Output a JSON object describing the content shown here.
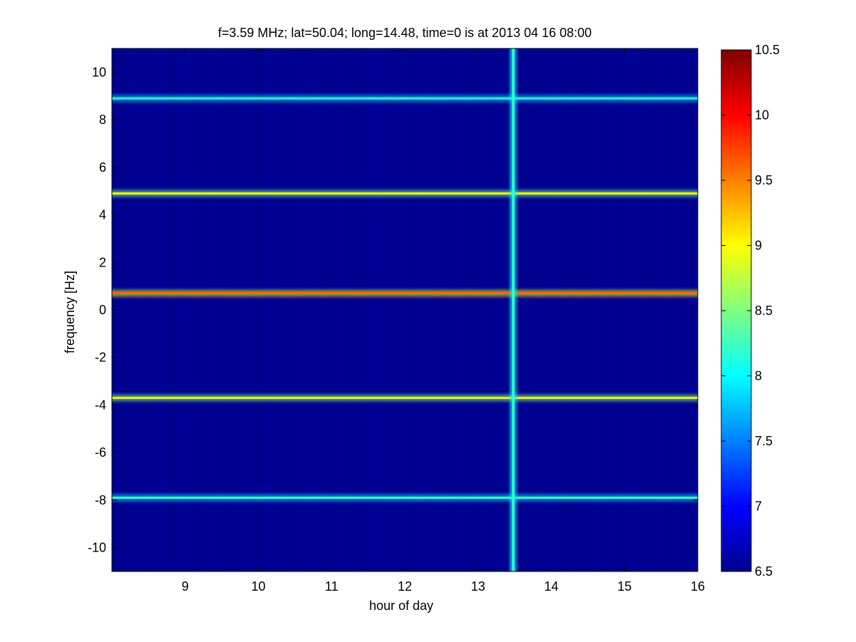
{
  "chart_data": {
    "type": "heatmap",
    "title": "f=3.59 MHz;  lat=50.04; long=14.48, time=0 is at 2013 04 16 08:00",
    "xlabel": "hour of day",
    "ylabel": "frequency [Hz]",
    "xlim": [
      8,
      16
    ],
    "ylim": [
      -11,
      11
    ],
    "x_ticks": [
      9,
      10,
      11,
      12,
      13,
      14,
      15,
      16
    ],
    "y_ticks": [
      10,
      8,
      6,
      4,
      2,
      0,
      -2,
      -4,
      -6,
      -8,
      -10
    ],
    "colorbar": {
      "range": [
        6.5,
        10.5
      ],
      "ticks": [
        "10.5",
        "10",
        "9.5",
        "9",
        "8.5",
        "8",
        "7.5",
        "7",
        "6.5"
      ],
      "colormap": "jet"
    },
    "background_level": 6.7,
    "features": [
      {
        "kind": "horizontal-trace",
        "frequency_hz": 8.9,
        "peak_level": 8.2
      },
      {
        "kind": "horizontal-trace",
        "frequency_hz": 4.9,
        "peak_level": 9.0
      },
      {
        "kind": "horizontal-trace",
        "frequency_hz": 0.7,
        "peak_level": 9.6
      },
      {
        "kind": "horizontal-trace",
        "frequency_hz": -3.7,
        "peak_level": 9.0
      },
      {
        "kind": "horizontal-trace",
        "frequency_hz": -7.9,
        "peak_level": 8.3
      },
      {
        "kind": "vertical-broadband-stripe",
        "hour": 13.48,
        "peak_level": 8.2
      }
    ]
  },
  "colors": {
    "background": "#ffffff",
    "plot_background": "#00008f"
  }
}
